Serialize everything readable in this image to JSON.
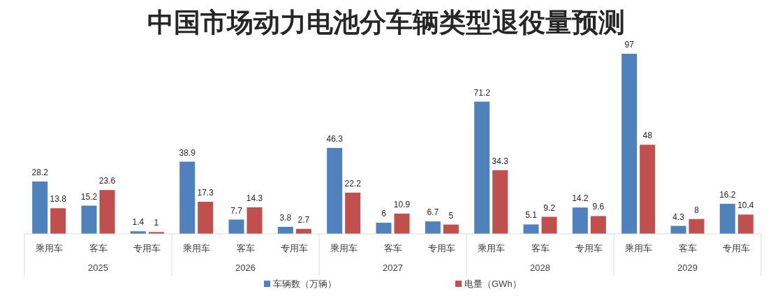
{
  "chart_data": {
    "type": "bar",
    "title": "中国市场动力电池分车辆类型退役量预测",
    "categories": [
      "乘用车",
      "客车",
      "专用车",
      "乘用车",
      "客车",
      "专用车",
      "乘用车",
      "客车",
      "专用车",
      "乘用车",
      "客车",
      "专用车",
      "乘用车",
      "客车",
      "专用车"
    ],
    "annotations": [
      "2025",
      "2026",
      "2027",
      "2028",
      "2029"
    ],
    "series": [
      {
        "name": "车辆数（万辆）",
        "color": "#4f81bd",
        "values": [
          28.2,
          15.2,
          1.4,
          38.9,
          7.7,
          3.8,
          46.3,
          6,
          6.7,
          71.2,
          5.1,
          14.2,
          97,
          4.3,
          16.2
        ]
      },
      {
        "name": "电量（GWh）",
        "color": "#c0504d",
        "values": [
          13.8,
          23.6,
          1,
          17.3,
          14.3,
          2.7,
          22.2,
          10.9,
          5,
          34.3,
          9.2,
          9.6,
          48,
          8,
          10.4
        ]
      }
    ],
    "data_labels": true,
    "legend": "bottom"
  }
}
